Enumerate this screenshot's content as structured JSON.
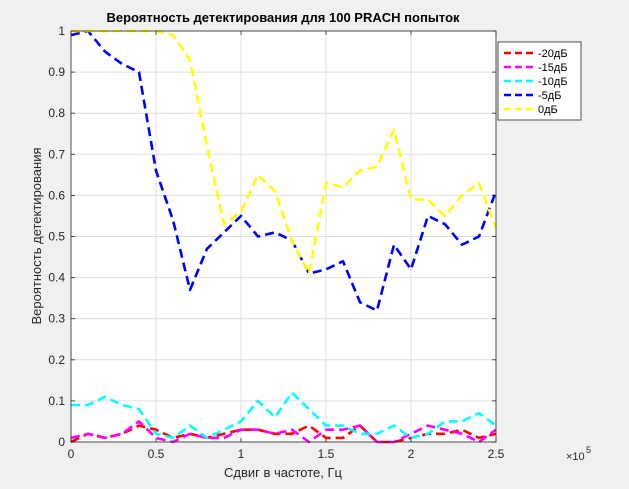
{
  "chart_data": {
    "type": "line",
    "title": "Вероятность детектирования для 100 PRACH попыток",
    "xlabel": "Сдвиг в частоте, Гц",
    "ylabel": "Вероятность детектирования",
    "x_multiplier_base": "×10",
    "x_multiplier_exp": "5",
    "xlim": [
      0,
      2.5
    ],
    "ylim": [
      0,
      1
    ],
    "xticks": [
      0,
      0.5,
      1,
      1.5,
      2,
      2.5
    ],
    "xtick_labels": [
      "0",
      "0.5",
      "1",
      "1.5",
      "2",
      "2.5"
    ],
    "yticks": [
      0,
      0.1,
      0.2,
      0.3,
      0.4,
      0.5,
      0.6,
      0.7,
      0.8,
      0.9,
      1
    ],
    "ytick_labels": [
      "0",
      "0.1",
      "0.2",
      "0.3",
      "0.4",
      "0.5",
      "0.6",
      "0.7",
      "0.8",
      "0.9",
      "1"
    ],
    "grid": true,
    "legend_position": "top-right",
    "x": [
      0,
      0.1,
      0.2,
      0.3,
      0.4,
      0.5,
      0.6,
      0.7,
      0.8,
      0.9,
      1.0,
      1.1,
      1.2,
      1.3,
      1.4,
      1.5,
      1.6,
      1.7,
      1.8,
      1.9,
      2.0,
      2.1,
      2.2,
      2.3,
      2.4,
      2.5
    ],
    "series": [
      {
        "name": "-20дБ",
        "color": "#ff0000",
        "values": [
          0,
          0.02,
          0.01,
          0.02,
          0.04,
          0.03,
          0.01,
          0.02,
          0.01,
          0.02,
          0.03,
          0.03,
          0.02,
          0.02,
          0.04,
          0.01,
          0.01,
          0.04,
          0.0,
          0.0,
          0.01,
          0.02,
          0.02,
          0.03,
          0.01,
          0.02
        ]
      },
      {
        "name": "-15дБ",
        "color": "#ff00ff",
        "values": [
          0.01,
          0.02,
          0.01,
          0.02,
          0.05,
          0.01,
          0.0,
          0.02,
          0.01,
          0.01,
          0.03,
          0.03,
          0.02,
          0.03,
          0.0,
          0.03,
          0.03,
          0.04,
          0.0,
          0.0,
          0.02,
          0.04,
          0.03,
          0.02,
          0.0,
          0.03
        ]
      },
      {
        "name": "-10дБ",
        "color": "#00ffff",
        "values": [
          0.09,
          0.09,
          0.11,
          0.09,
          0.08,
          0.02,
          0.01,
          0.04,
          0.01,
          0.03,
          0.05,
          0.1,
          0.06,
          0.12,
          0.08,
          0.04,
          0.04,
          0.02,
          0.02,
          0.04,
          0.01,
          0.02,
          0.05,
          0.05,
          0.07,
          0.04
        ]
      },
      {
        "name": "-5дБ",
        "color": "#0000ff",
        "values": [
          0.99,
          1.0,
          0.95,
          0.92,
          0.9,
          0.66,
          0.54,
          0.37,
          0.47,
          0.51,
          0.55,
          0.5,
          0.51,
          0.49,
          0.41,
          0.42,
          0.44,
          0.34,
          0.32,
          0.48,
          0.42,
          0.55,
          0.53,
          0.48,
          0.5,
          0.61
        ]
      },
      {
        "name": "0дБ",
        "color": "#ffff00",
        "values": [
          1.0,
          1.0,
          1.0,
          1.0,
          1.0,
          1.0,
          0.99,
          0.93,
          0.72,
          0.53,
          0.56,
          0.65,
          0.61,
          0.49,
          0.41,
          0.63,
          0.62,
          0.66,
          0.67,
          0.76,
          0.59,
          0.59,
          0.55,
          0.6,
          0.63,
          0.52
        ]
      }
    ]
  }
}
